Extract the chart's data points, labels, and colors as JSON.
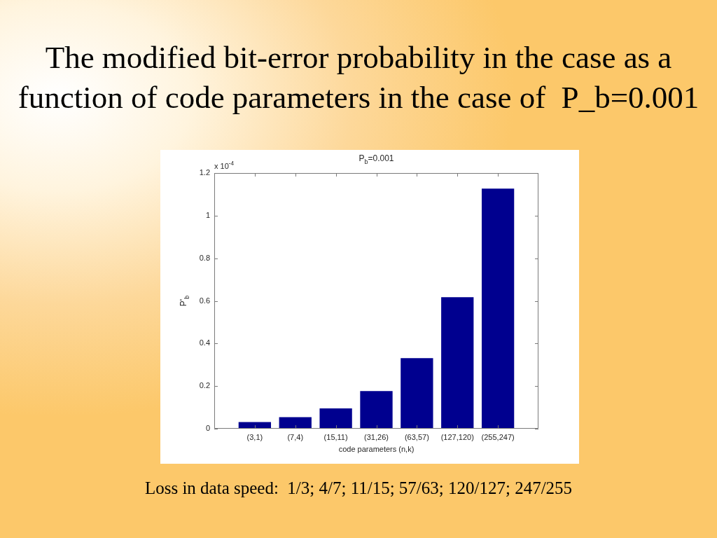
{
  "chart_data": {
    "type": "bar",
    "title": "The modified bit-error probability in the case as a function of code parameters in the case of  P_b=0.001",
    "subtitle": "P$_{b}$=0.001",
    "xlabel": "code parameters (n,k)",
    "ylabel": "P'$_{b}$",
    "categories": [
      "(3,1)",
      "(7,4)",
      "(15,11)",
      "(31,26)",
      "(63,57)",
      "(127,120)",
      "(255,247)"
    ],
    "values": [
      0.031,
      0.054,
      0.095,
      0.177,
      0.331,
      0.617,
      1.127
    ],
    "color": "#00008f",
    "ylim": [
      0,
      1.2
    ],
    "yticks": [
      0,
      0.2,
      0.4,
      0.6,
      0.8,
      1,
      1.2
    ],
    "annotations": [
      "x 10$^{-4}$",
      "Loss in data speed:  1/3; 4/7; 11/15; 57/63; 120/127; 247/255"
    ],
    "legend": false,
    "grid": false
  }
}
